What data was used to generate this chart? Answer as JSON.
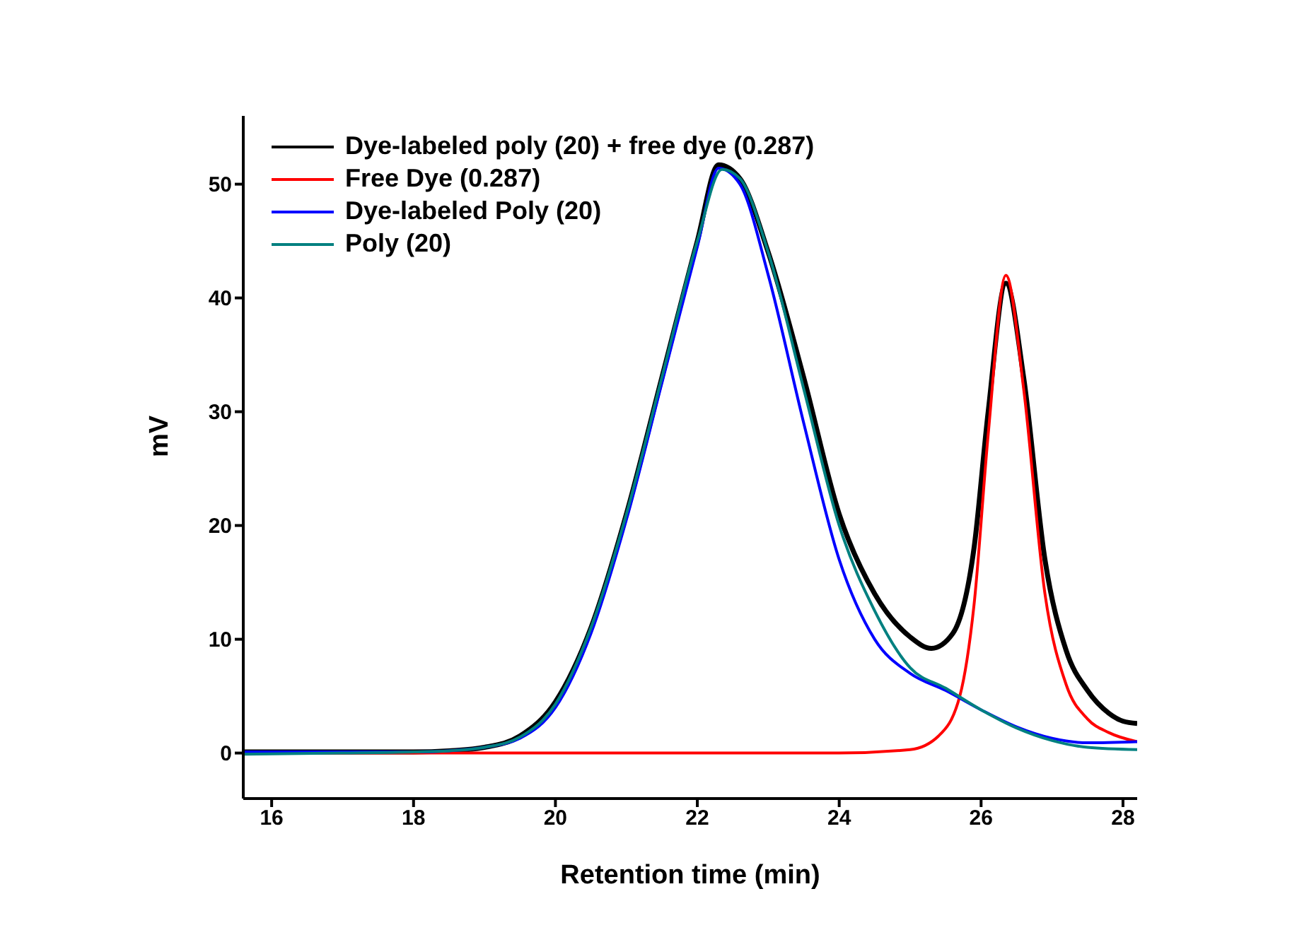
{
  "chart_data": {
    "type": "line",
    "xlabel": "Retention time (min)",
    "ylabel": "mV",
    "xlim": [
      15.6,
      28.2
    ],
    "xticks": [
      16,
      18,
      20,
      22,
      24,
      26,
      28
    ],
    "ylim": [
      -4,
      56
    ],
    "yticks": [
      0,
      10,
      20,
      30,
      40,
      50
    ],
    "legend": "top left",
    "grid": false,
    "marker": "none",
    "line_style": "solid",
    "series": [
      {
        "name": "Dye-labeled poly (20) + free dye (0.287)",
        "color": "#000000",
        "x": [
          15.6,
          17,
          18,
          18.5,
          19,
          19.5,
          20,
          20.5,
          21,
          21.5,
          22,
          22.3,
          22.6,
          23,
          23.5,
          24,
          24.5,
          25,
          25.3,
          25.6,
          25.9,
          26.1,
          26.35,
          26.6,
          26.9,
          27.2,
          27.5,
          27.8,
          28,
          28.2
        ],
        "values": [
          0.1,
          0.1,
          0.1,
          0.2,
          0.5,
          1.5,
          4.5,
          11,
          21,
          33,
          45,
          51.7,
          50.5,
          44,
          33,
          21,
          14,
          10.2,
          9.2,
          10.5,
          18,
          30,
          41.3,
          33,
          17,
          9,
          5.5,
          3.5,
          2.8,
          2.6
        ]
      },
      {
        "name": "Free Dye (0.287)",
        "color": "#ff0000",
        "x": [
          15.6,
          20,
          24,
          25,
          25.4,
          25.7,
          25.9,
          26.1,
          26.35,
          26.6,
          26.9,
          27.2,
          27.5,
          27.8,
          28.2
        ],
        "values": [
          0,
          0,
          0,
          0.3,
          1.5,
          5,
          13,
          28,
          42,
          32,
          14,
          6,
          3,
          1.8,
          1
        ]
      },
      {
        "name": "Dye-labeled Poly (20)",
        "color": "#0000ff",
        "x": [
          15.6,
          17,
          18,
          18.5,
          19,
          19.5,
          20,
          20.5,
          21,
          21.5,
          22,
          22.3,
          22.6,
          23,
          23.5,
          24,
          24.5,
          25,
          25.5,
          26,
          26.5,
          27,
          27.5,
          28.2
        ],
        "values": [
          0.1,
          0.1,
          0.1,
          0.2,
          0.5,
          1.3,
          4,
          10.5,
          20.5,
          32.5,
          44.5,
          51.4,
          50,
          42,
          29,
          17,
          10,
          7,
          5.5,
          3.8,
          2.3,
          1.3,
          0.9,
          1
        ]
      },
      {
        "name": "Poly (20)",
        "color": "#008080",
        "x": [
          15.6,
          17,
          18,
          18.5,
          19,
          19.5,
          20,
          20.5,
          21,
          21.5,
          22,
          22.35,
          22.6,
          23,
          23.5,
          24,
          24.5,
          25,
          25.5,
          26,
          26.5,
          27,
          27.5,
          28.2
        ],
        "values": [
          -0.1,
          0,
          0.1,
          0.2,
          0.5,
          1.4,
          4.3,
          11,
          21,
          33,
          45,
          51.3,
          50.5,
          44,
          32,
          20,
          12.5,
          7.5,
          5.7,
          3.8,
          2.2,
          1.1,
          0.5,
          0.3
        ]
      }
    ]
  }
}
